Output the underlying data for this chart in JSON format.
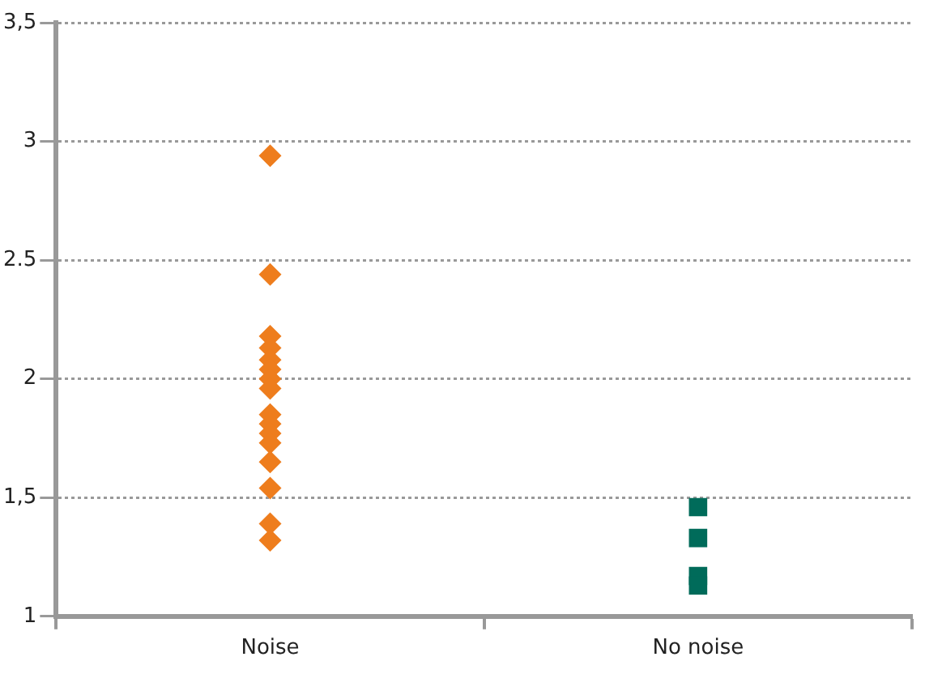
{
  "chart_data": {
    "type": "scatter",
    "categories": [
      "Noise",
      "No noise"
    ],
    "series": [
      {
        "color": "#ee7d1d",
        "marker": "diamond",
        "x": [
          "Noise",
          "Noise",
          "Noise",
          "Noise",
          "Noise",
          "Noise",
          "Noise",
          "Noise",
          "Noise",
          "Noise",
          "Noise",
          "Noise",
          "Noise",
          "Noise",
          "Noise",
          "Noise"
        ],
        "values": [
          2.94,
          2.44,
          2.18,
          2.13,
          2.08,
          2.04,
          2.0,
          1.96,
          1.85,
          1.81,
          1.77,
          1.73,
          1.65,
          1.54,
          1.39,
          1.32
        ]
      },
      {
        "color": "#006b5a",
        "marker": "square",
        "x": [
          "No noise",
          "No noise",
          "No noise",
          "No noise"
        ],
        "values": [
          1.46,
          1.33,
          1.17,
          1.13
        ]
      }
    ],
    "ylim": [
      1,
      3.5
    ],
    "yticks": [
      1,
      {
        "value": 1.5,
        "label": "1,5"
      },
      2,
      2.5,
      3,
      {
        "value": 3.5,
        "label": "3,5"
      }
    ],
    "grid": "y",
    "legend": false
  }
}
